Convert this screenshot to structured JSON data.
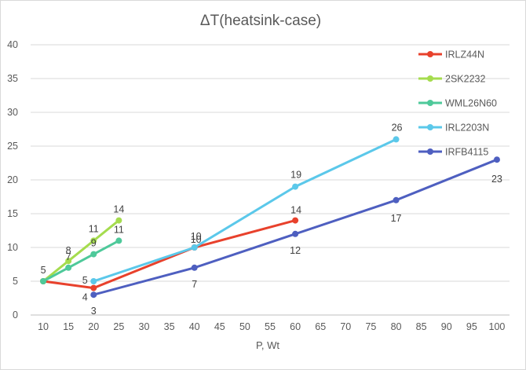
{
  "chart_data": {
    "type": "line",
    "title": "ΔT(heatsink-case)",
    "xlabel": "P, Wt",
    "ylabel": "",
    "xlim": [
      10,
      100
    ],
    "ylim": [
      0,
      40
    ],
    "x_ticks": [
      "10",
      "15",
      "20",
      "25",
      "30",
      "35",
      "40",
      "45",
      "50",
      "55",
      "60",
      "65",
      "70",
      "75",
      "80",
      "85",
      "90",
      "95",
      "100"
    ],
    "y_ticks": [
      "0",
      "5",
      "10",
      "15",
      "20",
      "25",
      "30",
      "35",
      "40"
    ],
    "grid": true,
    "legend_position": "right",
    "series": [
      {
        "name": "IRLZ44N",
        "color": "#e8412c",
        "points": [
          {
            "x": 10,
            "y": 5,
            "label": "5"
          },
          {
            "x": 20,
            "y": 4,
            "label": "4"
          },
          {
            "x": 40,
            "y": 10,
            "label": "10"
          },
          {
            "x": 60,
            "y": 14,
            "label": "14"
          }
        ]
      },
      {
        "name": "2SK2232",
        "color": "#a5dc4e",
        "points": [
          {
            "x": 10,
            "y": 5,
            "label": ""
          },
          {
            "x": 15,
            "y": 8,
            "label": "8"
          },
          {
            "x": 20,
            "y": 11,
            "label": "11"
          },
          {
            "x": 25,
            "y": 14,
            "label": "14"
          }
        ]
      },
      {
        "name": "WML26N60",
        "color": "#4ec99a",
        "points": [
          {
            "x": 10,
            "y": 5,
            "label": ""
          },
          {
            "x": 15,
            "y": 7,
            "label": "7"
          },
          {
            "x": 20,
            "y": 9,
            "label": "9"
          },
          {
            "x": 25,
            "y": 11,
            "label": "11"
          }
        ]
      },
      {
        "name": "IRL2203N",
        "color": "#5bc8ea",
        "points": [
          {
            "x": 20,
            "y": 5,
            "label": "5"
          },
          {
            "x": 40,
            "y": 10,
            "label": "10"
          },
          {
            "x": 60,
            "y": 19,
            "label": "19"
          },
          {
            "x": 80,
            "y": 26,
            "label": "26"
          }
        ]
      },
      {
        "name": "IRFB4115",
        "color": "#4e5fc0",
        "points": [
          {
            "x": 20,
            "y": 3,
            "label": "3"
          },
          {
            "x": 40,
            "y": 7,
            "label": "7"
          },
          {
            "x": 60,
            "y": 12,
            "label": "12"
          },
          {
            "x": 80,
            "y": 17,
            "label": "17"
          },
          {
            "x": 100,
            "y": 23,
            "label": "23"
          }
        ]
      }
    ]
  }
}
